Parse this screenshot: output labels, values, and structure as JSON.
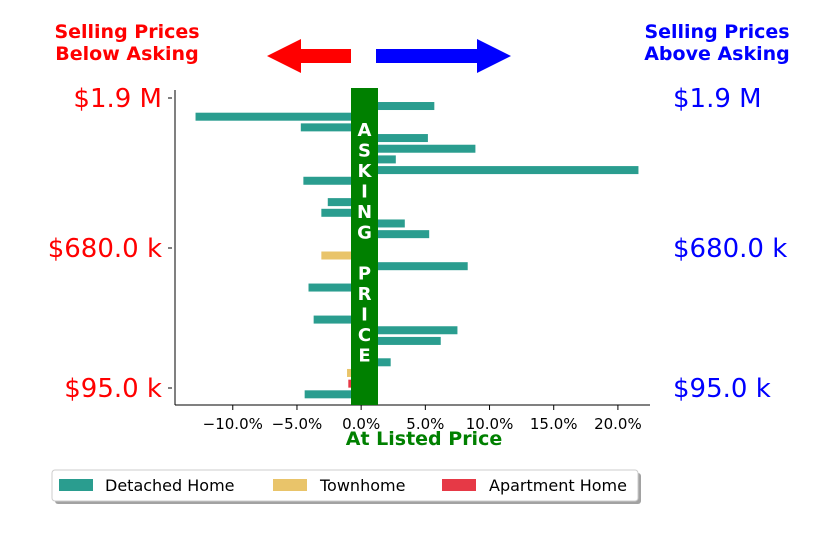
{
  "header": {
    "left_line1": "Selling Prices",
    "left_line2": "Below Asking",
    "right_line1": "Selling Prices",
    "right_line2": "Above Asking"
  },
  "colors": {
    "below": "#ff0000",
    "above": "#0000ff",
    "asking_band": "#008000",
    "detached": "#2a9d8f",
    "townhome": "#e9c46a",
    "apartment": "#e63946"
  },
  "price_labels": {
    "left": [
      "$1.9 M",
      "$680.0 k",
      "$95.0 k"
    ],
    "right": [
      "$1.9 M",
      "$680.0 k",
      "$95.0 k"
    ]
  },
  "band_text": [
    "A",
    "S",
    "K",
    "I",
    "N",
    "G",
    "",
    "P",
    "R",
    "I",
    "C",
    "E"
  ],
  "xlabel": "At Listed Price",
  "legend": [
    "Detached Home",
    "Townhome",
    "Apartment Home"
  ],
  "chart_data": {
    "type": "bar",
    "orientation": "horizontal",
    "xlabel": "At Listed Price",
    "x_unit": "percent difference from asking price",
    "x_ticks": [
      "−10.0%",
      "−5.0%",
      "0.0%",
      "5.0%",
      "10.0%",
      "15.0%",
      "20.0%"
    ],
    "x_tick_values": [
      -10,
      -5,
      0,
      5,
      10,
      15,
      20
    ],
    "xlim": [
      -14.5,
      22.5
    ],
    "y_ticks": [
      "$1.9 M",
      "$680.0 k",
      "$95.0 k"
    ],
    "ylim": [
      0,
      29.5
    ],
    "legend_position": "bottom",
    "series": [
      {
        "name": "Detached Home",
        "color": "#2a9d8f",
        "bars": [
          {
            "y": 28,
            "value": 5.7
          },
          {
            "y": 27,
            "value": -12.9
          },
          {
            "y": 26,
            "value": -4.7
          },
          {
            "y": 25,
            "value": 5.2
          },
          {
            "y": 24,
            "value": 8.9
          },
          {
            "y": 23,
            "value": 2.7
          },
          {
            "y": 22,
            "value": 21.6
          },
          {
            "y": 21,
            "value": -4.5
          },
          {
            "y": 20,
            "value": 1.1
          },
          {
            "y": 19,
            "value": -2.6
          },
          {
            "y": 18,
            "value": -3.1
          },
          {
            "y": 17,
            "value": 3.4
          },
          {
            "y": 16,
            "value": 5.3
          },
          {
            "y": 15,
            "value": 1.1
          },
          {
            "y": 13,
            "value": 8.3
          },
          {
            "y": 12,
            "value": 1.1
          },
          {
            "y": 11,
            "value": -4.1
          },
          {
            "y": 10,
            "value": 1.1
          },
          {
            "y": 9,
            "value": 1.1
          },
          {
            "y": 8,
            "value": -3.7
          },
          {
            "y": 7,
            "value": 7.5
          },
          {
            "y": 6,
            "value": 6.2
          },
          {
            "y": 5,
            "value": 1.1
          },
          {
            "y": 4,
            "value": 2.3
          },
          {
            "y": 1,
            "value": -4.4
          }
        ]
      },
      {
        "name": "Townhome",
        "color": "#e9c46a",
        "bars": [
          {
            "y": 14,
            "value": -3.1
          },
          {
            "y": 3,
            "value": -1.1
          }
        ]
      },
      {
        "name": "Apartment Home",
        "color": "#e63946",
        "bars": [
          {
            "y": 2,
            "value": -1.0
          },
          {
            "y": 2,
            "value": 1.0
          }
        ]
      }
    ]
  }
}
